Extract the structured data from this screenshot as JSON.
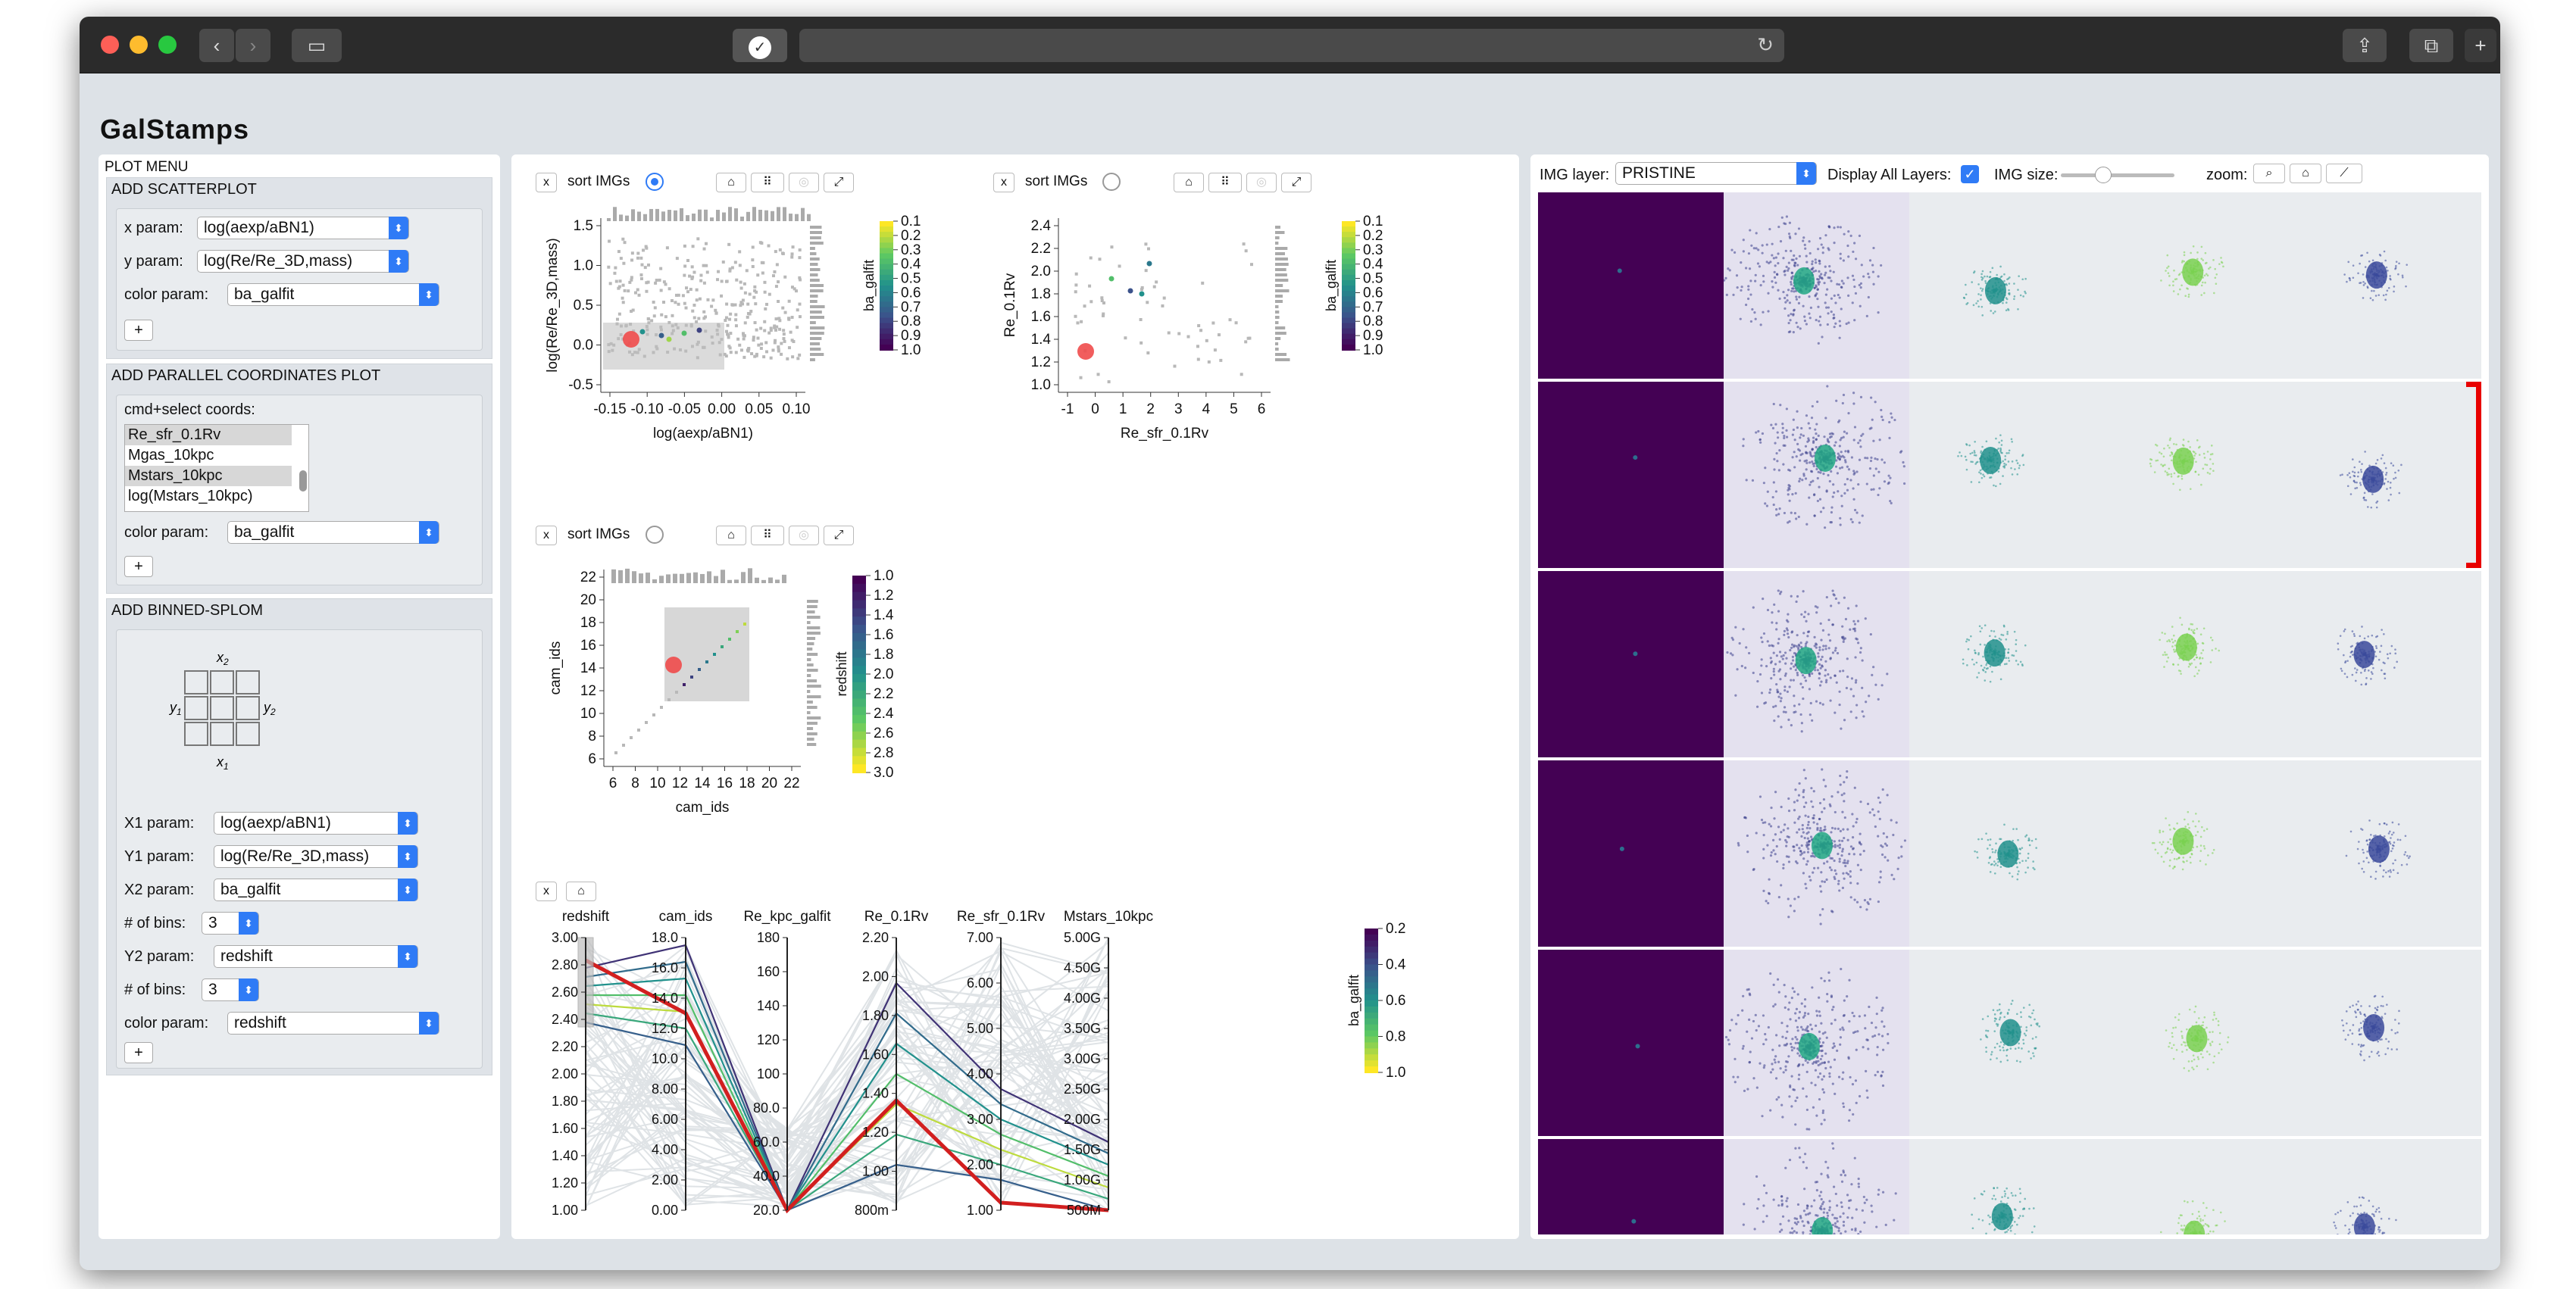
{
  "app": {
    "title": "GalStamps"
  },
  "menu": {
    "title": "PLOT MENU",
    "scatter": {
      "title": "ADD SCATTERPLOT",
      "x_label": "x param:",
      "x_value": "log(aexp/aBN1)",
      "y_label": "y param:",
      "y_value": "log(Re/Re_3D,mass)",
      "c_label": "color param:",
      "c_value": "ba_galfit",
      "add": "+"
    },
    "pcp": {
      "title": "ADD PARALLEL COORDINATES PLOT",
      "hint": "cmd+select coords:",
      "coords": [
        "Re_sfr_0.1Rv",
        "Mgas_10kpc",
        "Mstars_10kpc",
        "log(Mstars_10kpc)"
      ],
      "c_label": "color param:",
      "c_value": "ba_galfit",
      "add": "+"
    },
    "splom": {
      "title": "ADD BINNED-SPLOM",
      "x1": "X1 param:",
      "x1v": "log(aexp/aBN1)",
      "y1": "Y1 param:",
      "y1v": "log(Re/Re_3D,mass)",
      "x2": "X2 param:",
      "x2v": "ba_galfit",
      "nb1": "# of bins:",
      "nb1v": "3",
      "y2": "Y2 param:",
      "y2v": "redshift",
      "nb2": "# of bins:",
      "nb2v": "3",
      "c_label": "color param:",
      "c_value": "redshift",
      "add": "+",
      "lx2": "x",
      "lx1": "x",
      "ly1": "y",
      "ly2": "y",
      "s1": "1",
      "s2": "2"
    }
  },
  "controls": {
    "x": "x",
    "sort": "sort IMGs",
    "home": "⌂",
    "expand": "⤢"
  },
  "plot1": {
    "ticks_x": [
      "-0.15",
      "-0.10",
      "-0.05",
      "0.00",
      "0.05",
      "0.10"
    ],
    "ticks_y": [
      "1.5",
      "1.0",
      "0.5",
      "0.0",
      "-0.5"
    ],
    "xlabel": "log(aexp/aBN1)",
    "ylabel": "log(Re/Re_3D,mass)",
    "cb_label": "ba_galfit",
    "cb_ticks": [
      "0.1",
      "0.2",
      "0.3",
      "0.4",
      "0.5",
      "0.6",
      "0.7",
      "0.8",
      "0.9",
      "1.0"
    ]
  },
  "plot2": {
    "ticks_x": [
      "-1",
      "0",
      "1",
      "2",
      "3",
      "4",
      "5",
      "6"
    ],
    "ticks_y": [
      "2.4",
      "2.2",
      "2.0",
      "1.8",
      "1.6",
      "1.4",
      "1.2",
      "1.0"
    ],
    "xlabel": "Re_sfr_0.1Rv",
    "ylabel": "Re_0.1Rv",
    "cb_label": "ba_galfit",
    "cb_ticks": [
      "0.1",
      "0.2",
      "0.3",
      "0.4",
      "0.5",
      "0.6",
      "0.7",
      "0.8",
      "0.9",
      "1.0"
    ]
  },
  "plot3": {
    "ticks_x": [
      "6",
      "8",
      "10",
      "12",
      "14",
      "16",
      "18",
      "20",
      "22"
    ],
    "ticks_y": [
      "22",
      "20",
      "18",
      "16",
      "14",
      "12",
      "10",
      "8",
      "6"
    ],
    "xlabel": "cam_ids",
    "ylabel": "cam_ids",
    "cb_label": "redshift",
    "cb_ticks": [
      "1.0",
      "1.2",
      "1.4",
      "1.6",
      "1.8",
      "2.0",
      "2.2",
      "2.4",
      "2.6",
      "2.8",
      "3.0"
    ]
  },
  "pcp": {
    "axes": [
      {
        "name": "redshift",
        "ticks": [
          "3.00",
          "2.80",
          "2.60",
          "2.40",
          "2.20",
          "2.00",
          "1.80",
          "1.60",
          "1.40",
          "1.20",
          "1.00"
        ]
      },
      {
        "name": "cam_ids",
        "ticks": [
          "18.0",
          "16.0",
          "14.0",
          "12.0",
          "10.0",
          "8.00",
          "6.00",
          "4.00",
          "2.00",
          "0.00"
        ]
      },
      {
        "name": "Re_kpc_galfit",
        "ticks": [
          "180",
          "160",
          "140",
          "120",
          "100",
          "80.0",
          "60.0",
          "40.0",
          "20.0"
        ]
      },
      {
        "name": "Re_0.1Rv",
        "ticks": [
          "2.20",
          "2.00",
          "1.80",
          "1.60",
          "1.40",
          "1.20",
          "1.00",
          "800m"
        ]
      },
      {
        "name": "Re_sfr_0.1Rv",
        "ticks": [
          "7.00",
          "6.00",
          "5.00",
          "4.00",
          "3.00",
          "2.00",
          "1.00"
        ]
      },
      {
        "name": "Mstars_10kpc",
        "ticks": [
          "5.00G",
          "4.50G",
          "4.00G",
          "3.50G",
          "3.00G",
          "2.50G",
          "2.00G",
          "1.50G",
          "1.00G",
          "500M"
        ]
      }
    ],
    "cb_label": "ba_galfit",
    "cb_ticks": [
      "0.2",
      "0.4",
      "0.6",
      "0.8",
      "1.0"
    ]
  },
  "images": {
    "layer_label": "IMG layer:",
    "layer_value": "PRISTINE",
    "display_all": "Display All Layers:",
    "size_label": "IMG size:",
    "zoom_label": "zoom:"
  }
}
